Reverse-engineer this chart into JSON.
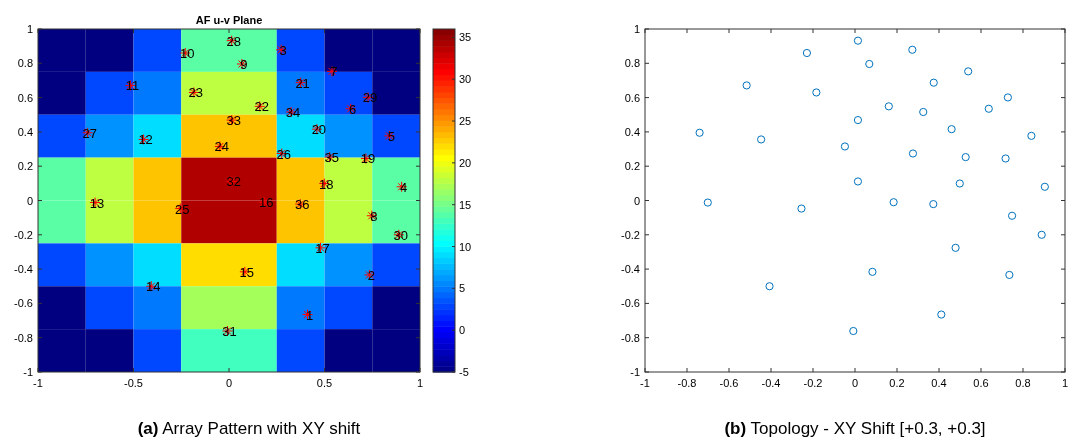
{
  "chart_data": [
    {
      "type": "heatmap",
      "title": "AF u-v Plane",
      "clim": [
        -5,
        36
      ],
      "cticks": [
        -5,
        0,
        5,
        10,
        15,
        20,
        25,
        30,
        35
      ],
      "xlim": [
        -1,
        1
      ],
      "xticks": [
        -1,
        -0.5,
        0,
        0.5,
        1
      ],
      "ylim": [
        -1,
        1
      ],
      "yticks": [
        -1,
        -0.8,
        -0.6,
        -0.4,
        -0.2,
        0,
        0.2,
        0.4,
        0.6,
        0.8,
        1
      ],
      "cells": [
        [
          -5,
          -5,
          3,
          14,
          14,
          3,
          -5,
          -5
        ],
        [
          -5,
          3,
          5,
          18,
          18,
          5,
          3,
          -5
        ],
        [
          3,
          6,
          9,
          23,
          23,
          9,
          6,
          3
        ],
        [
          14,
          18,
          23,
          34,
          34,
          23,
          18,
          14
        ],
        [
          14,
          18,
          23,
          34,
          34,
          23,
          18,
          14
        ],
        [
          3,
          6,
          9,
          22,
          22,
          9,
          6,
          3
        ],
        [
          -5,
          3,
          5,
          17,
          17,
          5,
          3,
          -5
        ],
        [
          -5,
          -5,
          3,
          13,
          13,
          3,
          -5,
          -5
        ]
      ],
      "series": [
        {
          "type": "scatter",
          "color": "#ff0000",
          "marker": "cross",
          "x": [
            0.014,
            -0.229,
            0.273,
            0.068,
            0.539,
            -0.516,
            0.375,
            -0.184,
            0.728,
            0.161,
            0.325,
            0.637,
            0.014,
            0.46,
            -0.74,
            0.84,
            -0.447,
            -0.048,
            0.276,
            0.527,
            0.717,
            0.014,
            0.499,
            0.904,
            -0.701,
            0.184,
            0.373,
            -0.255,
            0.748,
            0.889,
            0.479,
            0.083,
            0.735,
            -0.407,
            0.411,
            -0.008
          ],
          "values": [
            0.932,
            0.86,
            0.879,
            0.796,
            0.753,
            0.671,
            0.687,
            0.63,
            0.601,
            0.549,
            0.516,
            0.535,
            0.469,
            0.416,
            0.395,
            0.377,
            0.356,
            0.315,
            0.274,
            0.253,
            0.245,
            0.111,
            0.099,
            0.08,
            -0.012,
            -0.01,
            -0.021,
            -0.047,
            -0.089,
            -0.2,
            -0.276,
            -0.416,
            -0.434,
            -0.5,
            -0.665,
            -0.761
          ]
        }
      ],
      "annotations": [
        "(a) Array Pattern with XY shift",
        {
          "text": "28",
          "x": 0.014,
          "y": 0.932
        },
        {
          "text": "10",
          "x": -0.229,
          "y": 0.86
        },
        {
          "text": "3",
          "x": 0.273,
          "y": 0.879
        },
        {
          "text": "9",
          "x": 0.068,
          "y": 0.796
        },
        {
          "text": "7",
          "x": 0.539,
          "y": 0.753
        },
        {
          "text": "11",
          "x": -0.516,
          "y": 0.671
        },
        {
          "text": "21",
          "x": 0.375,
          "y": 0.687
        },
        {
          "text": "23",
          "x": -0.184,
          "y": 0.63
        },
        {
          "text": "29",
          "x": 0.728,
          "y": 0.601
        },
        {
          "text": "22",
          "x": 0.161,
          "y": 0.549
        },
        {
          "text": "34",
          "x": 0.325,
          "y": 0.516
        },
        {
          "text": "6",
          "x": 0.637,
          "y": 0.535
        },
        {
          "text": "33",
          "x": 0.014,
          "y": 0.469
        },
        {
          "text": "20",
          "x": 0.46,
          "y": 0.416
        },
        {
          "text": "27",
          "x": -0.74,
          "y": 0.395
        },
        {
          "text": "5",
          "x": 0.84,
          "y": 0.377
        },
        {
          "text": "12",
          "x": -0.447,
          "y": 0.356
        },
        {
          "text": "24",
          "x": -0.048,
          "y": 0.315
        },
        {
          "text": "26",
          "x": 0.276,
          "y": 0.274
        },
        {
          "text": "35",
          "x": 0.527,
          "y": 0.253
        },
        {
          "text": "19",
          "x": 0.717,
          "y": 0.245
        },
        {
          "text": "32",
          "x": 0.014,
          "y": 0.111
        },
        {
          "text": "18",
          "x": 0.499,
          "y": 0.099
        },
        {
          "text": "4",
          "x": 0.904,
          "y": 0.08
        },
        {
          "text": "13",
          "x": -0.701,
          "y": -0.012
        },
        {
          "text": "16",
          "x": 0.184,
          "y": -0.01
        },
        {
          "text": "36",
          "x": 0.373,
          "y": -0.021
        },
        {
          "text": "25",
          "x": -0.255,
          "y": -0.047
        },
        {
          "text": "8",
          "x": 0.748,
          "y": -0.089
        },
        {
          "text": "30",
          "x": 0.889,
          "y": -0.2
        },
        {
          "text": "17",
          "x": 0.479,
          "y": -0.276
        },
        {
          "text": "15",
          "x": 0.083,
          "y": -0.416
        },
        {
          "text": "2",
          "x": 0.735,
          "y": -0.434
        },
        {
          "text": "14",
          "x": -0.407,
          "y": -0.5
        },
        {
          "text": "1",
          "x": 0.411,
          "y": -0.665
        },
        {
          "text": "31",
          "x": -0.008,
          "y": -0.761
        }
      ]
    },
    {
      "type": "scatter",
      "marker": "circle",
      "color": "#0072bd",
      "x": [
        0.014,
        -0.229,
        0.273,
        0.068,
        0.539,
        -0.516,
        0.375,
        -0.184,
        0.728,
        0.161,
        0.325,
        0.637,
        0.014,
        0.46,
        -0.74,
        0.84,
        -0.447,
        -0.048,
        0.276,
        0.527,
        0.717,
        0.014,
        0.499,
        0.904,
        -0.701,
        0.184,
        0.373,
        -0.255,
        0.748,
        0.889,
        0.479,
        0.083,
        0.735,
        -0.407,
        0.411,
        -0.008
      ],
      "values": [
        0.932,
        0.86,
        0.879,
        0.796,
        0.753,
        0.671,
        0.687,
        0.63,
        0.601,
        0.549,
        0.516,
        0.535,
        0.469,
        0.416,
        0.395,
        0.377,
        0.356,
        0.315,
        0.274,
        0.253,
        0.245,
        0.111,
        0.099,
        0.08,
        -0.012,
        -0.01,
        -0.021,
        -0.047,
        -0.089,
        -0.2,
        -0.276,
        -0.416,
        -0.434,
        -0.5,
        -0.665,
        -0.761
      ],
      "xlim": [
        -1,
        1
      ],
      "xticks": [
        -1,
        -0.8,
        -0.6,
        -0.4,
        -0.2,
        0,
        0.2,
        0.4,
        0.6,
        0.8,
        1
      ],
      "ylim": [
        -1,
        1
      ],
      "yticks": [
        -1,
        -0.8,
        -0.6,
        -0.4,
        -0.2,
        0,
        0.2,
        0.4,
        0.6,
        0.8,
        1
      ],
      "annotations": [
        "(b) Topology - XY Shift [+0.3, +0.3]"
      ]
    }
  ]
}
